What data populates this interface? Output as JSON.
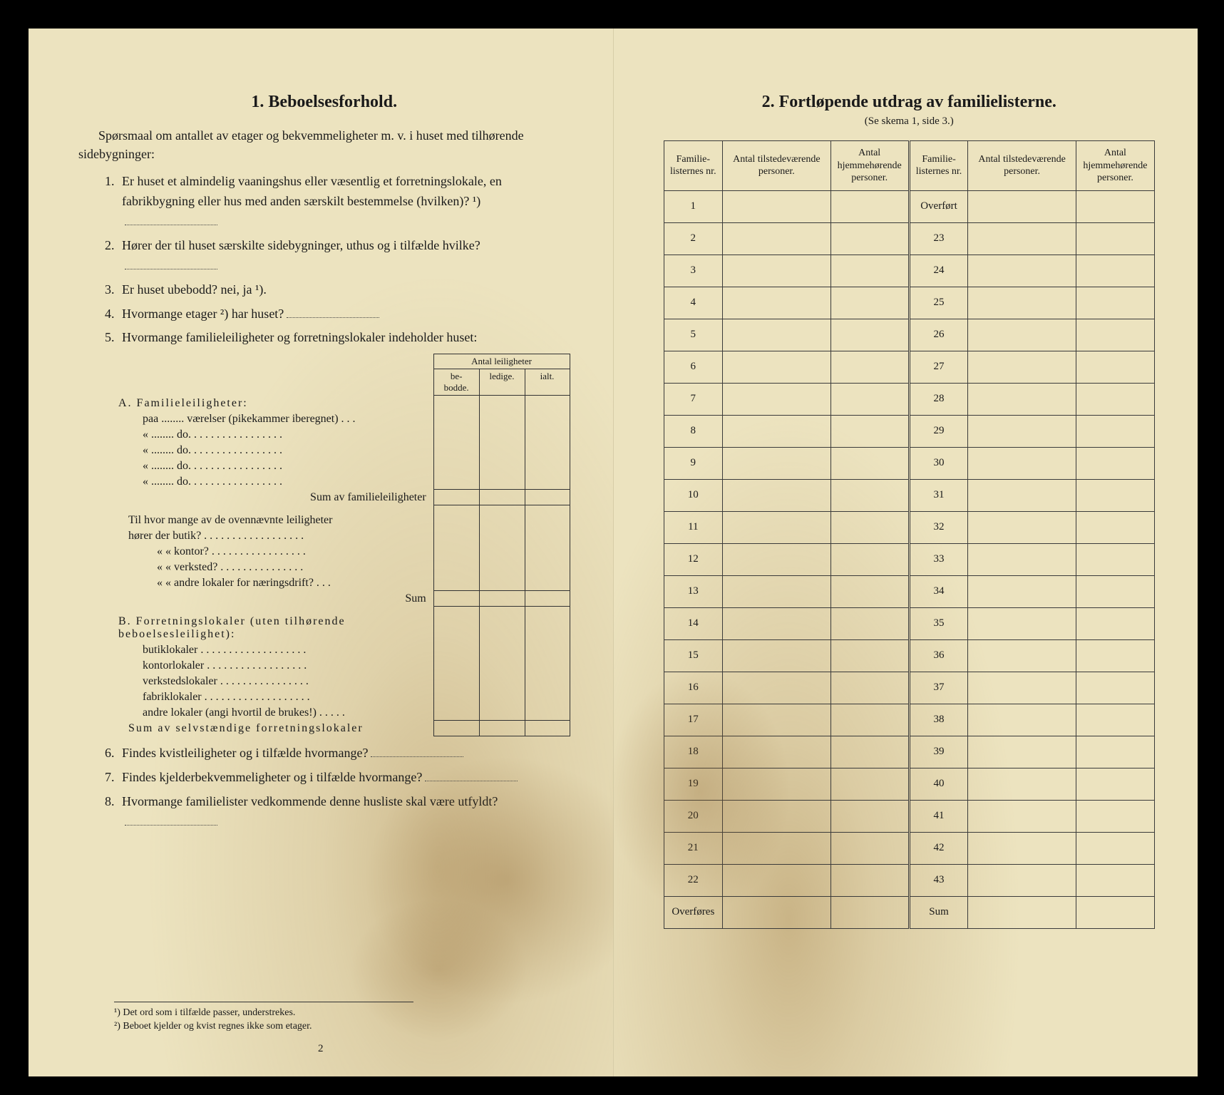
{
  "left": {
    "title": "1.   Beboelsesforhold.",
    "intro": "Spørsmaal om antallet av etager og bekvemmeligheter m. v. i huset med tilhørende sidebygninger:",
    "q1": "Er huset et almindelig vaaningshus eller væsentlig et forretningslokale, en fabrikbygning eller hus med anden særskilt bestemmelse (hvilken)? ¹)",
    "q2": "Hører der til huset særskilte sidebygninger, uthus og i tilfælde hvilke?",
    "q3": "Er huset ubebodd?  nei,  ja ¹).",
    "q4": "Hvormange etager ²) har huset?",
    "q5": "Hvormange familieleiligheter og forretningslokaler indeholder huset:",
    "table_head": "Antal leiligheter",
    "col_be": "be-\nbodde.",
    "col_ledige": "ledige.",
    "col_ialt": "ialt.",
    "a_head": "A. Familieleiligheter:",
    "a1": "paa ........ værelser (pikekammer iberegnet) . . .",
    "a2": "«   ........    do.    . . . . . . . . . . . . . . . .",
    "a3": "«   ........    do.    . . . . . . . . . . . . . . . .",
    "a4": "«   ........    do.    . . . . . . . . . . . . . . . .",
    "a5": "«   ........    do.    . . . . . . . . . . . . . . . .",
    "a_sum": "Sum av familieleiligheter",
    "mid1": "Til hvor mange av de ovennævnte leiligheter",
    "mid2": "hører der butik? . . . . . . . . . . . . . . . . . .",
    "mid3": "«      «   kontor? . . . . . . . . . . . . . . . . .",
    "mid4": "«      «   verksted? . . . . . . . . . . . . . . .",
    "mid5": "«      «   andre lokaler for næringsdrift? . . .",
    "mid_sum": "Sum",
    "b_head": "B. Forretningslokaler (uten tilhørende beboelsesleilighet):",
    "b1": "butiklokaler . . . . . . . . . . . . . . . . . . .",
    "b2": "kontorlokaler . . . . . . . . . . . . . . . . . .",
    "b3": "verkstedslokaler . . . . . . . . . . . . . . . .",
    "b4": "fabriklokaler . . . . . . . . . . . . . . . . . . .",
    "b5": "andre lokaler (angi hvortil de brukes!) . . . . .",
    "b_sum": "Sum av selvstændige forretningslokaler",
    "q6": "Findes kvistleiligheter og i tilfælde hvormange?",
    "q7": "Findes kjelderbekvemmeligheter og i tilfælde hvormange?",
    "q8": "Hvormange familielister vedkommende denne husliste skal være utfyldt?",
    "fn1": "¹)  Det ord som i tilfælde passer, understrekes.",
    "fn2": "²)  Beboet kjelder og kvist regnes ikke som etager.",
    "page_num": "2"
  },
  "right": {
    "title": "2.   Fortløpende utdrag av familielisterne.",
    "subtitle": "(Se skema 1, side 3.)",
    "h1": "Familie-listernes nr.",
    "h2": "Antal tilstedeværende personer.",
    "h3": "Antal hjemmehørende personer.",
    "h4": "Familie-listernes nr.",
    "h5": "Antal tilstedeværende personer.",
    "h6": "Antal hjemmehørende personer.",
    "left_rows": [
      "1",
      "2",
      "3",
      "4",
      "5",
      "6",
      "7",
      "8",
      "9",
      "10",
      "11",
      "12",
      "13",
      "14",
      "15",
      "16",
      "17",
      "18",
      "19",
      "20",
      "21",
      "22",
      "Overføres"
    ],
    "right_rows": [
      "Overført",
      "23",
      "24",
      "25",
      "26",
      "27",
      "28",
      "29",
      "30",
      "31",
      "32",
      "33",
      "34",
      "35",
      "36",
      "37",
      "38",
      "39",
      "40",
      "41",
      "42",
      "43",
      "Sum"
    ]
  }
}
